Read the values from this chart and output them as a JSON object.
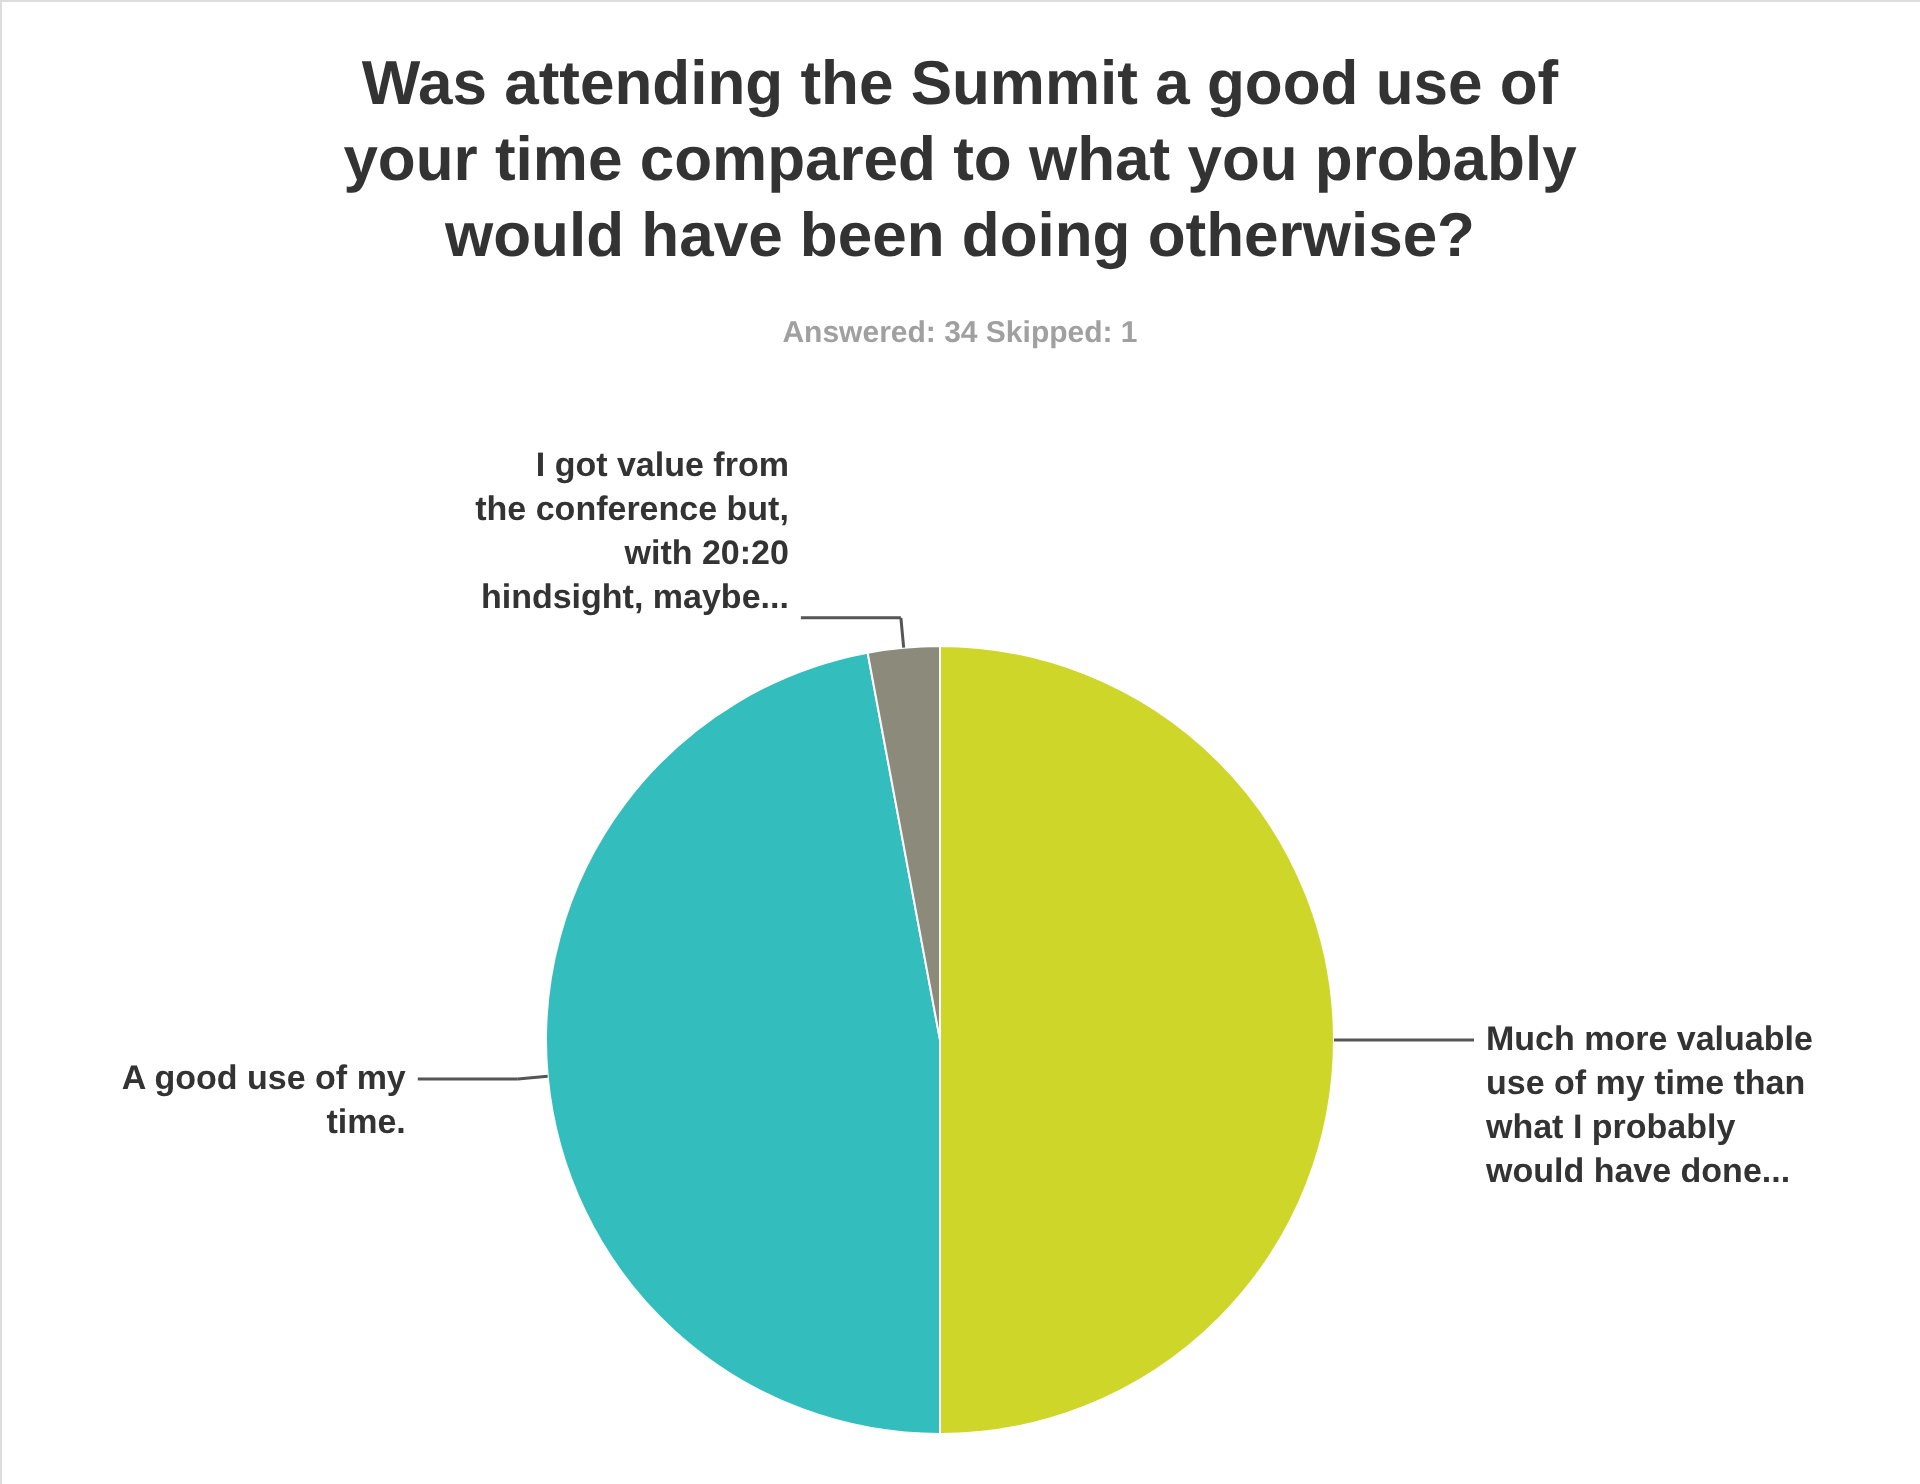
{
  "chart_data": {
    "type": "pie",
    "title": "Was attending the Summit a good use of\nyour time compared to what you probably\nwould have been doing otherwise?",
    "subtitle": "Answered: 34    Skipped: 1",
    "categories": [
      "Much more valuable\nuse of my time than\nwhat I probably\nwould have done...",
      "A good use of my\ntime.",
      "I got value from\nthe conference but,\nwith 20:20\nhindsight, maybe..."
    ],
    "values": [
      50,
      47.06,
      2.94
    ],
    "colors": [
      "#cfd62a",
      "#33bdbd",
      "#8c8b7b"
    ],
    "legend": false
  }
}
